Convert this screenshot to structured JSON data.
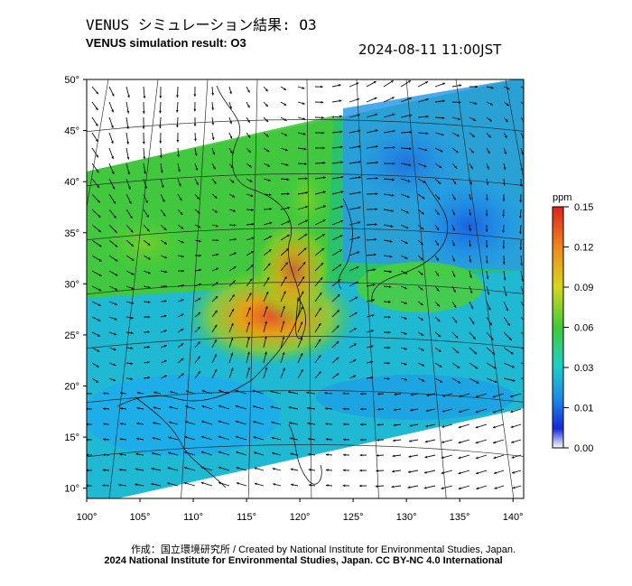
{
  "header": {
    "title_jp": "VENUS シミュレーション結果: O3",
    "title_en": "VENUS simulation result: O3",
    "timestamp": "2024-08-11 11:00JST"
  },
  "map": {
    "lat_labels": [
      "50°",
      "45°",
      "40°",
      "35°",
      "30°",
      "25°",
      "20°",
      "15°",
      "10°"
    ],
    "lat_values": [
      50,
      45,
      40,
      35,
      30,
      25,
      20,
      15,
      10
    ],
    "lon_labels": [
      "100°",
      "105°",
      "110°",
      "115°",
      "120°",
      "125°",
      "130°",
      "135°",
      "140°"
    ],
    "lon_values": [
      100,
      105,
      110,
      115,
      120,
      125,
      130,
      135,
      140
    ],
    "lat_range": [
      9,
      50
    ],
    "lon_range": [
      100,
      141
    ],
    "variable": "O3",
    "colors": {
      "low": "#0033cc",
      "mid_low": "#1aa3ff",
      "mid": "#22cc44",
      "high": "#e6a015",
      "peak": "#e03010"
    }
  },
  "colorbar": {
    "unit": "ppm",
    "tick_labels": [
      "0.15",
      "0.12",
      "0.09",
      "0.06",
      "0.03",
      "0.01",
      "0.00"
    ],
    "stops": [
      "#e0201b",
      "#ee8a1a",
      "#d8d61a",
      "#3fcc35",
      "#1ad0c8",
      "#1b88e8",
      "#1428d8",
      "#ffffff"
    ]
  },
  "footer": {
    "credit_line1": "作成：国立環境研究所 / Created by National Institute for Environmental Studies, Japan.",
    "credit_line2": "2024 National Institute for Environmental Studies, Japan. CC BY-NC 4.0 International"
  }
}
